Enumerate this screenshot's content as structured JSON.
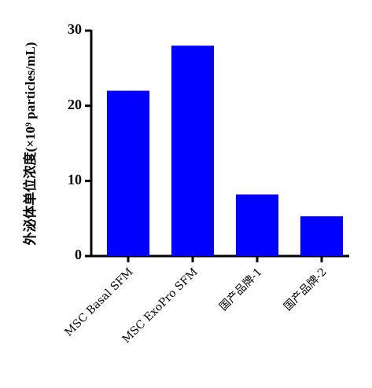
{
  "chart_data": {
    "type": "bar",
    "y_label": "外泌体单位浓度(×10⁹ particles/mL)",
    "categories": [
      "MSC Basal SFM",
      "MSC ExoPro SFM",
      "国产品牌-1",
      "国产品牌-2"
    ],
    "values": [
      22,
      28,
      8.2,
      5.3
    ],
    "color": "#0000ff",
    "ylim": [
      0,
      30
    ],
    "yticks": [
      0,
      10,
      20,
      30
    ],
    "grid": false
  }
}
